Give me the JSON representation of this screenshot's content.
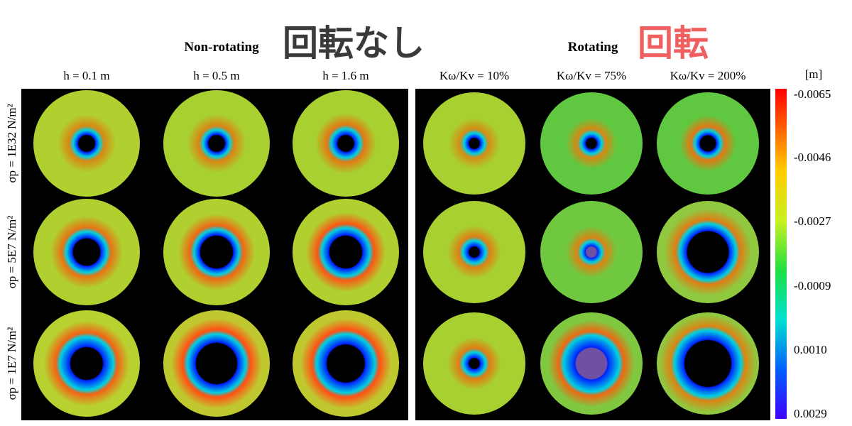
{
  "header": {
    "left_title": "Non-rotating",
    "left_tag": "回転なし",
    "right_title": "Rotating",
    "right_tag": "回転"
  },
  "columns": [
    "h = 0.1 m",
    "h = 0.5 m",
    "h = 1.6 m",
    "Kω/Kv = 10%",
    "Kω/Kv = 75%",
    "Kω/Kv = 200%"
  ],
  "rows": [
    "σp = 1E32 N/m²",
    "σp = 5E7 N/m²",
    "σp = 1E7 N/m²"
  ],
  "colorbar": {
    "unit": "[m]",
    "labels": [
      "-0.0065",
      "-0.0046",
      "-0.0027",
      "-0.0009",
      "0.0010",
      "0.0029"
    ]
  }
}
